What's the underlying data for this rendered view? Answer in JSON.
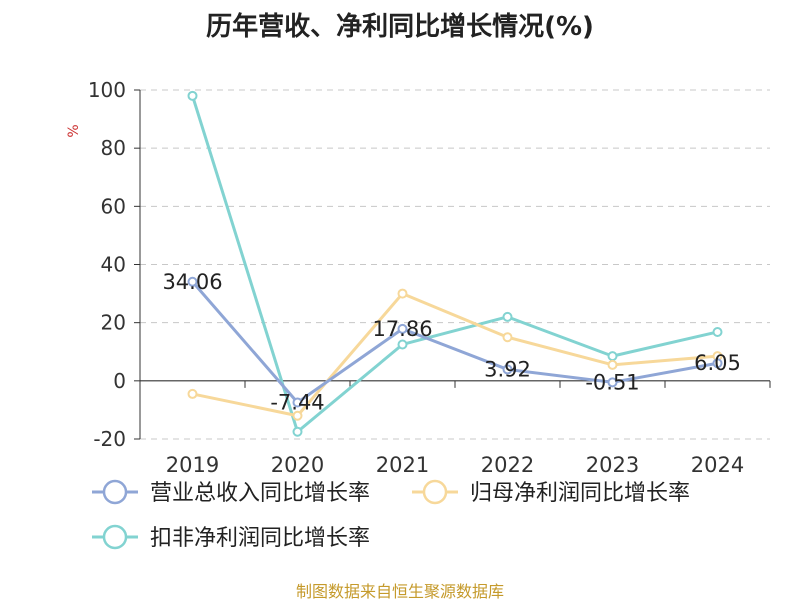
{
  "chart_data": {
    "type": "line",
    "title": "历年营收、净利同比增长情况(%)",
    "ylabel": "%",
    "ylim": [
      -20,
      100
    ],
    "yticks": [
      -20,
      0,
      20,
      40,
      60,
      80,
      100
    ],
    "categories": [
      "2019",
      "2020",
      "2021",
      "2022",
      "2023",
      "2024"
    ],
    "grid": "horizontal-dashed",
    "legend_position": "bottom",
    "series": [
      {
        "name": "营业总收入同比增长率",
        "color": "#8fa6d6",
        "values": [
          34.06,
          -7.44,
          17.86,
          3.92,
          -0.51,
          6.05
        ],
        "data_labels": [
          "34.06",
          "-7.44",
          "17.86",
          "3.92",
          "-0.51",
          "6.05"
        ]
      },
      {
        "name": "归母净利润同比增长率",
        "color": "#f7d89a",
        "values": [
          -4.5,
          -12.0,
          30.0,
          15.0,
          5.5,
          8.5
        ]
      },
      {
        "name": "扣非净利润同比增长率",
        "color": "#82d3d1",
        "values": [
          98.0,
          -17.5,
          12.5,
          22.0,
          8.5,
          16.8
        ]
      }
    ]
  },
  "footer": {
    "source": "制图数据来自恒生聚源数据库"
  }
}
